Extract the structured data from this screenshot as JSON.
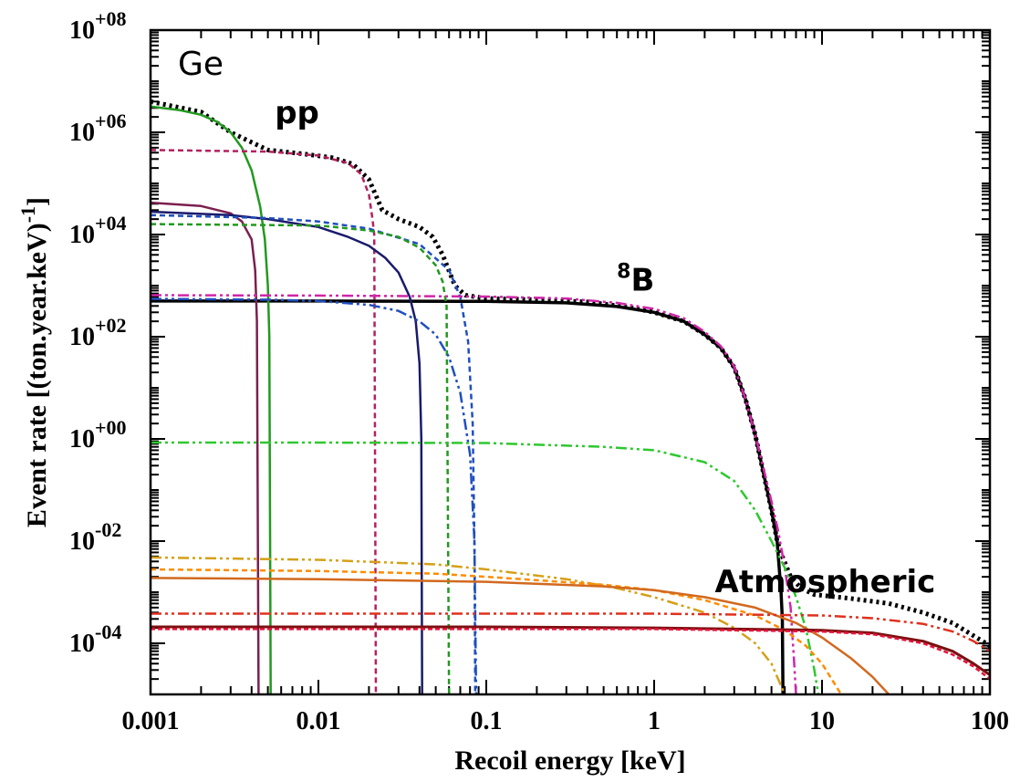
{
  "chart_data": {
    "type": "line",
    "panel_label": "Ge",
    "xlabel": "Recoil energy [keV]",
    "ylabel": {
      "main": "Event rate [(ton.year.keV)",
      "sup": "-1",
      "tail": "]"
    },
    "x_scale": "log",
    "y_scale": "log",
    "xlim": [
      0.001,
      100
    ],
    "ylim": [
      1e-05,
      100000000.0
    ],
    "x_ticks": [
      {
        "value": 0.001,
        "label": "0.001"
      },
      {
        "value": 0.01,
        "label": "0.01"
      },
      {
        "value": 0.1,
        "label": "0.1"
      },
      {
        "value": 1,
        "label": "1"
      },
      {
        "value": 10,
        "label": "10"
      },
      {
        "value": 100,
        "label": "100"
      }
    ],
    "y_ticks": [
      {
        "value": 0.0001,
        "base": "10",
        "exp": "-04"
      },
      {
        "value": 0.01,
        "base": "10",
        "exp": "-02"
      },
      {
        "value": 1,
        "base": "10",
        "exp": "+00"
      },
      {
        "value": 100,
        "base": "10",
        "exp": "+02"
      },
      {
        "value": 10000,
        "base": "10",
        "exp": "+04"
      },
      {
        "value": 1000000,
        "base": "10",
        "exp": "+06"
      },
      {
        "value": 100000000,
        "base": "10",
        "exp": "+08"
      }
    ],
    "annotations": [
      {
        "text": "pp",
        "x": 0.0055,
        "y": 1500000.0
      },
      {
        "base": "B",
        "sup": "8",
        "x": 0.6,
        "y": 800
      },
      {
        "text": "Atmospheric",
        "x": 2.3,
        "y": 0.001
      }
    ],
    "series": [
      {
        "color": "#000000",
        "dash": "3,4",
        "width": 5,
        "points": [
          [
            0.001,
            4000000.0
          ],
          [
            0.002,
            2500000.0
          ],
          [
            0.003,
            1000000.0
          ],
          [
            0.005,
            450000.0
          ],
          [
            0.008,
            380000.0
          ],
          [
            0.012,
            320000.0
          ],
          [
            0.016,
            240000.0
          ],
          [
            0.02,
            120000.0
          ],
          [
            0.024,
            30000.0
          ],
          [
            0.03,
            20000.0
          ],
          [
            0.04,
            14000.0
          ],
          [
            0.048,
            9000
          ],
          [
            0.055,
            4000
          ],
          [
            0.065,
            1000
          ],
          [
            0.075,
            650
          ],
          [
            0.1,
            560
          ],
          [
            0.2,
            530
          ],
          [
            0.4,
            480
          ],
          [
            0.7,
            380
          ],
          [
            1,
            300
          ],
          [
            1.5,
            200
          ],
          [
            2,
            110
          ],
          [
            2.5,
            60
          ],
          [
            3,
            25
          ],
          [
            3.5,
            6
          ],
          [
            4,
            1.2
          ],
          [
            4.5,
            0.2
          ],
          [
            5,
            0.04
          ],
          [
            5.4,
            0.01
          ],
          [
            5.8,
            0.005
          ],
          [
            6.5,
            0.002
          ],
          [
            7.5,
            0.0012
          ],
          [
            9,
            0.0009
          ],
          [
            15,
            0.00075
          ],
          [
            25,
            0.0006
          ],
          [
            40,
            0.0004
          ],
          [
            60,
            0.00025
          ],
          [
            80,
            0.00014
          ],
          [
            100,
            9e-05
          ]
        ]
      },
      {
        "color": "#000000",
        "dash": "",
        "width": 3.5,
        "points": [
          [
            0.001,
            500
          ],
          [
            0.01,
            500
          ],
          [
            0.1,
            490
          ],
          [
            0.3,
            460
          ],
          [
            0.6,
            390
          ],
          [
            1,
            300
          ],
          [
            1.5,
            200
          ],
          [
            2,
            110
          ],
          [
            2.5,
            60
          ],
          [
            3,
            25
          ],
          [
            3.5,
            6
          ],
          [
            4,
            1.2
          ],
          [
            4.5,
            0.2
          ],
          [
            5,
            0.04
          ],
          [
            5.4,
            0.01
          ],
          [
            5.7,
            0.001
          ],
          [
            5.8,
            0.0003
          ],
          [
            5.85,
            1e-05
          ]
        ]
      },
      {
        "color": "#22991F",
        "dash": "",
        "width": 2.5,
        "points": [
          [
            0.001,
            3200000.0
          ],
          [
            0.0015,
            2700000.0
          ],
          [
            0.002,
            2200000.0
          ],
          [
            0.0025,
            1600000.0
          ],
          [
            0.003,
            1000000.0
          ],
          [
            0.0035,
            500000.0
          ],
          [
            0.004,
            180000.0
          ],
          [
            0.0045,
            35000.0
          ],
          [
            0.0048,
            8000
          ],
          [
            0.005,
            1000
          ],
          [
            0.0051,
            100
          ],
          [
            0.0052,
            1e-05
          ]
        ]
      },
      {
        "color": "#B5205F",
        "dash": "6,4",
        "width": 2.5,
        "points": [
          [
            0.001,
            450000.0
          ],
          [
            0.005,
            420000.0
          ],
          [
            0.01,
            350000.0
          ],
          [
            0.015,
            250000.0
          ],
          [
            0.018,
            150000.0
          ],
          [
            0.02,
            60000.0
          ],
          [
            0.021,
            20000.0
          ],
          [
            0.0215,
            10000.0
          ],
          [
            0.022,
            1e-05
          ]
        ]
      },
      {
        "color": "#7A1F4F",
        "dash": "",
        "width": 2.5,
        "points": [
          [
            0.001,
            42000.0
          ],
          [
            0.002,
            36000.0
          ],
          [
            0.003,
            26000.0
          ],
          [
            0.0035,
            18000.0
          ],
          [
            0.004,
            8000
          ],
          [
            0.0042,
            2000
          ],
          [
            0.0043,
            200
          ],
          [
            0.0044,
            1e-05
          ]
        ]
      },
      {
        "color": "#1A1A6B",
        "dash": "",
        "width": 2.5,
        "points": [
          [
            0.001,
            28000.0
          ],
          [
            0.003,
            24000.0
          ],
          [
            0.005,
            20000.0
          ],
          [
            0.01,
            14000.0
          ],
          [
            0.015,
            9000
          ],
          [
            0.02,
            6000
          ],
          [
            0.025,
            3500
          ],
          [
            0.03,
            1800
          ],
          [
            0.035,
            600
          ],
          [
            0.038,
            200
          ],
          [
            0.04,
            30
          ],
          [
            0.041,
            1
          ],
          [
            0.0415,
            1e-05
          ]
        ]
      },
      {
        "color": "#1F4FBF",
        "dash": "6,4",
        "width": 2.5,
        "points": [
          [
            0.001,
            24000.0
          ],
          [
            0.005,
            21000.0
          ],
          [
            0.01,
            18000.0
          ],
          [
            0.02,
            13000.0
          ],
          [
            0.04,
            6500
          ],
          [
            0.06,
            2000
          ],
          [
            0.07,
            600
          ],
          [
            0.078,
            80
          ],
          [
            0.083,
            2
          ],
          [
            0.085,
            0.01
          ],
          [
            0.086,
            1e-05
          ]
        ]
      },
      {
        "color": "#22991F",
        "dash": "6,4",
        "width": 2.5,
        "points": [
          [
            0.001,
            16000.0
          ],
          [
            0.01,
            15000.0
          ],
          [
            0.02,
            12000.0
          ],
          [
            0.03,
            9000
          ],
          [
            0.04,
            5500
          ],
          [
            0.05,
            2500
          ],
          [
            0.055,
            1200
          ],
          [
            0.058,
            400
          ],
          [
            0.06,
            1e-05
          ]
        ]
      },
      {
        "color": "#D026A8",
        "dash": "12,4,3,4,3,4",
        "width": 2.5,
        "points": [
          [
            0.001,
            650
          ],
          [
            0.01,
            640
          ],
          [
            0.1,
            610
          ],
          [
            0.3,
            560
          ],
          [
            0.6,
            460
          ],
          [
            1,
            350
          ],
          [
            1.5,
            230
          ],
          [
            2,
            125
          ],
          [
            2.5,
            65
          ],
          [
            3,
            26
          ],
          [
            3.5,
            6
          ],
          [
            4,
            1.2
          ],
          [
            4.5,
            0.25
          ],
          [
            5,
            0.06
          ],
          [
            5.5,
            0.015
          ],
          [
            6,
            0.003
          ],
          [
            6.5,
            0.0005
          ],
          [
            6.8,
            5e-05
          ],
          [
            7,
            1e-05
          ]
        ]
      },
      {
        "color": "#1F4FBF",
        "dash": "12,4,3,4,3,4",
        "width": 2.5,
        "points": [
          [
            0.001,
            550
          ],
          [
            0.005,
            530
          ],
          [
            0.01,
            500
          ],
          [
            0.02,
            420
          ],
          [
            0.03,
            320
          ],
          [
            0.04,
            200
          ],
          [
            0.05,
            110
          ],
          [
            0.06,
            40
          ],
          [
            0.07,
            8
          ],
          [
            0.08,
            0.5
          ],
          [
            0.085,
            0.01
          ],
          [
            0.087,
            1e-05
          ]
        ]
      },
      {
        "color": "#2EC82E",
        "dash": "12,4,3,4,3,4",
        "width": 2.5,
        "points": [
          [
            0.001,
            0.85
          ],
          [
            0.01,
            0.85
          ],
          [
            0.1,
            0.83
          ],
          [
            0.5,
            0.7
          ],
          [
            1,
            0.6
          ],
          [
            2,
            0.35
          ],
          [
            3,
            0.15
          ],
          [
            4,
            0.04
          ],
          [
            5,
            0.01
          ],
          [
            6,
            0.003
          ],
          [
            7,
            0.0008
          ],
          [
            8,
            0.0002
          ],
          [
            9,
            3e-05
          ],
          [
            9.5,
            1e-05
          ]
        ]
      },
      {
        "color": "#D4A017",
        "dash": "12,4,3,4,3,4",
        "width": 2.5,
        "points": [
          [
            0.001,
            0.0048
          ],
          [
            0.01,
            0.0043
          ],
          [
            0.05,
            0.0035
          ],
          [
            0.1,
            0.0028
          ],
          [
            0.3,
            0.0018
          ],
          [
            0.6,
            0.0012
          ],
          [
            1,
            0.0008
          ],
          [
            2,
            0.0004
          ],
          [
            3,
            0.0002
          ],
          [
            4,
            0.0001
          ],
          [
            5,
            4e-05
          ],
          [
            6,
            1e-05
          ]
        ]
      },
      {
        "color": "#FF8C00",
        "dash": "6,4",
        "width": 2.5,
        "points": [
          [
            0.001,
            0.0028
          ],
          [
            0.01,
            0.0026
          ],
          [
            0.05,
            0.0023
          ],
          [
            0.1,
            0.002
          ],
          [
            0.5,
            0.0014
          ],
          [
            1,
            0.0011
          ],
          [
            2,
            0.0007
          ],
          [
            4,
            0.00035
          ],
          [
            6,
            0.00018
          ],
          [
            8,
            9e-05
          ],
          [
            10,
            4e-05
          ],
          [
            13,
            1e-05
          ]
        ]
      },
      {
        "color": "#D2691E",
        "dash": "",
        "width": 2.5,
        "points": [
          [
            0.001,
            0.0019
          ],
          [
            0.01,
            0.0018
          ],
          [
            0.1,
            0.0016
          ],
          [
            0.5,
            0.0013
          ],
          [
            1,
            0.0011
          ],
          [
            2,
            0.0008
          ],
          [
            4,
            0.0005
          ],
          [
            7,
            0.00025
          ],
          [
            10,
            0.00013
          ],
          [
            15,
            5e-05
          ],
          [
            20,
            2.2e-05
          ],
          [
            25,
            1e-05
          ]
        ]
      },
      {
        "color": "#E0301E",
        "dash": "12,4,3,4,3,4",
        "width": 2.5,
        "points": [
          [
            0.001,
            0.00038
          ],
          [
            0.1,
            0.00038
          ],
          [
            1,
            0.00038
          ],
          [
            10,
            0.00035
          ],
          [
            20,
            0.00031
          ],
          [
            40,
            0.00024
          ],
          [
            60,
            0.00017
          ],
          [
            80,
            0.00011
          ],
          [
            100,
            7e-05
          ]
        ]
      },
      {
        "color": "#7A1010",
        "dash": "",
        "width": 3,
        "points": [
          [
            0.001,
            0.00021
          ],
          [
            0.1,
            0.00021
          ],
          [
            1,
            0.0002
          ],
          [
            10,
            0.00018
          ],
          [
            20,
            0.00016
          ],
          [
            40,
            0.00011
          ],
          [
            60,
            7e-05
          ],
          [
            80,
            4e-05
          ],
          [
            100,
            2.4e-05
          ]
        ]
      },
      {
        "color": "#E8103A",
        "dash": "5,3",
        "width": 2.5,
        "points": [
          [
            0.001,
            0.00019
          ],
          [
            0.1,
            0.00019
          ],
          [
            1,
            0.00019
          ],
          [
            10,
            0.00017
          ],
          [
            20,
            0.00015
          ],
          [
            40,
            0.0001
          ],
          [
            60,
            6e-05
          ],
          [
            80,
            3.5e-05
          ],
          [
            100,
            2e-05
          ]
        ]
      }
    ]
  }
}
